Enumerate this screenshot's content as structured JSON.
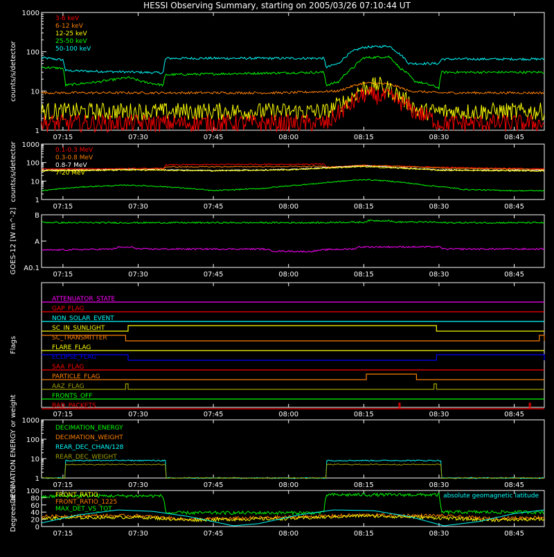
{
  "title": "HESSI Observing Summary, starting on 2005/03/26 07:10:44 UT",
  "colors": {
    "background": "#000000",
    "axes": "#ffffff",
    "red": "#ff0000",
    "orange": "#ff8000",
    "yellow": "#ffff00",
    "green": "#00ff00",
    "cyan": "#00ffff",
    "magenta": "#ff00ff",
    "blue": "#0000ff",
    "olive": "#a0a000"
  },
  "chart_data": [
    {
      "id": "p1",
      "type": "line",
      "title": "HESSI Observing Summary, starting on 2005/03/26 07:10:44 UT",
      "ylabel": "counts/s/detector",
      "yscale": "log",
      "ylim": [
        1,
        1000
      ],
      "xlim": [
        "07:10:44",
        "08:51:00"
      ],
      "ytick_labels": [
        "1",
        "10",
        "100",
        "1000"
      ],
      "xtick_labels": [
        "07:15",
        "07:30",
        "07:45",
        "08:00",
        "08:15",
        "08:30",
        "08:45"
      ],
      "legend": [
        {
          "label": "3-6 keV",
          "color": "#ff0000"
        },
        {
          "label": "6-12 keV",
          "color": "#ff8000"
        },
        {
          "label": "12-25 keV",
          "color": "#ffff00"
        },
        {
          "label": "25-50 keV",
          "color": "#00ff00"
        },
        {
          "label": "50-100 keV",
          "color": "#00ffff"
        }
      ],
      "series": [
        {
          "name": "50-100 keV",
          "color": "#00ffff",
          "x": [
            "07:10:44",
            "07:15:00",
            "07:15:30",
            "07:35:00",
            "07:35:30",
            "08:07:00",
            "08:07:30",
            "08:10:00",
            "08:13:00",
            "08:15:00",
            "08:18:00",
            "08:20:00",
            "08:22:00",
            "08:24:00",
            "08:30:00",
            "08:30:30",
            "08:51:00"
          ],
          "y": [
            70,
            62,
            33,
            29,
            68,
            68,
            40,
            50,
            105,
            130,
            135,
            140,
            90,
            50,
            50,
            65,
            65
          ]
        },
        {
          "name": "25-50 keV",
          "color": "#00ff00",
          "x": [
            "07:10:44",
            "07:15:00",
            "07:15:30",
            "07:22:00",
            "07:28:00",
            "07:31:00",
            "07:35:00",
            "07:35:30",
            "08:07:00",
            "08:07:30",
            "08:10:00",
            "08:13:00",
            "08:15:00",
            "08:20:00",
            "08:22:00",
            "08:25:00",
            "08:30:00",
            "08:30:30",
            "08:51:00"
          ],
          "y": [
            40,
            38,
            14,
            17,
            22,
            17,
            14,
            26,
            30,
            14,
            17,
            40,
            70,
            75,
            40,
            18,
            12,
            30,
            30
          ]
        },
        {
          "name": "6-12 keV",
          "color": "#ff8000",
          "x": [
            "07:10:44",
            "07:30:00",
            "07:45:00",
            "08:00:00",
            "08:10:00",
            "08:15:00",
            "08:20:00",
            "08:24:00",
            "08:30:00",
            "08:51:00"
          ],
          "y": [
            9,
            9,
            9,
            9,
            10,
            16,
            15,
            10,
            9,
            9
          ]
        },
        {
          "name": "12-25 keV",
          "color": "#ffff00",
          "x": [
            "07:10:44",
            "07:30:00",
            "07:45:00",
            "08:00:00",
            "08:08:00",
            "08:12:00",
            "08:15:00",
            "08:18:00",
            "08:20:00",
            "08:23:00",
            "08:26:00",
            "08:30:00",
            "08:51:00"
          ],
          "y": [
            3,
            3,
            3,
            3,
            3,
            6,
            12,
            14,
            11,
            6,
            3,
            3,
            3
          ]
        },
        {
          "name": "3-6 keV",
          "color": "#ff0000",
          "x": [
            "07:10:44",
            "07:30:00",
            "07:45:00",
            "08:00:00",
            "08:08:00",
            "08:12:00",
            "08:15:00",
            "08:20:00",
            "08:25:00",
            "08:30:00",
            "08:51:00"
          ],
          "y": [
            1.5,
            1.5,
            1.5,
            1.5,
            1.5,
            4,
            8,
            7,
            3,
            1.5,
            1.5
          ]
        }
      ]
    },
    {
      "id": "p2",
      "type": "line",
      "ylabel": "counts/s/detector",
      "yscale": "log",
      "ylim": [
        1,
        1000
      ],
      "xlim": [
        "07:10:44",
        "08:51:00"
      ],
      "ytick_labels": [
        "1",
        "10",
        "100",
        "1000"
      ],
      "xtick_labels": [
        "07:15",
        "07:30",
        "07:45",
        "08:00",
        "08:15",
        "08:30",
        "08:45"
      ],
      "legend": [
        {
          "label": "0.1-0.3 MeV",
          "color": "#ff0000"
        },
        {
          "label": "0.3-0.8 MeV",
          "color": "#ff8000"
        },
        {
          "label": "0.8-7 MeV",
          "color": "#ffffff"
        },
        {
          "label": "7-20 MeV",
          "color": "#ffff00"
        }
      ],
      "series": [
        {
          "name": "0.1-0.3 MeV",
          "color": "#ff0000",
          "x": [
            "07:10:44",
            "07:35:00",
            "07:35:30",
            "07:50:00",
            "08:07:00",
            "08:07:30",
            "08:15:00",
            "08:30:00",
            "08:30:30",
            "08:51:00"
          ],
          "y": [
            45,
            48,
            75,
            80,
            82,
            55,
            70,
            55,
            55,
            45
          ]
        },
        {
          "name": "0.3-0.8 MeV",
          "color": "#ff8000",
          "x": [
            "07:10:44",
            "07:30:00",
            "07:35:00",
            "07:35:30",
            "07:50:00",
            "08:07:00",
            "08:07:30",
            "08:15:00",
            "08:30:00",
            "08:30:30",
            "08:51:00"
          ],
          "y": [
            40,
            44,
            45,
            58,
            60,
            62,
            55,
            70,
            52,
            50,
            42
          ]
        },
        {
          "name": "0.8-7 MeV",
          "color": "#ffffff",
          "x": [
            "07:10:44",
            "07:30:00",
            "07:45:00",
            "08:00:00",
            "08:15:00",
            "08:30:00",
            "08:51:00"
          ],
          "y": [
            38,
            42,
            38,
            42,
            65,
            40,
            38
          ]
        },
        {
          "name": "7-20 MeV",
          "color": "#ffff00",
          "x": [
            "07:10:44",
            "07:30:00",
            "07:45:00",
            "08:00:00",
            "08:15:00",
            "08:30:00",
            "08:51:00"
          ],
          "y": [
            35,
            40,
            36,
            40,
            60,
            38,
            35
          ]
        },
        {
          "name": "",
          "color": "#00ff00",
          "x": [
            "07:10:44",
            "07:20:00",
            "07:28:00",
            "07:35:00",
            "07:45:00",
            "07:55:00",
            "08:05:00",
            "08:15:00",
            "08:20:00",
            "08:27:00",
            "08:35:00",
            "08:45:00",
            "08:51:00"
          ],
          "y": [
            3,
            5,
            6,
            5,
            3,
            4,
            7,
            12,
            10,
            6,
            3.5,
            3,
            3
          ]
        }
      ]
    },
    {
      "id": "p3",
      "type": "line",
      "ylabel": "GOES-12 [W m^-2]",
      "yscale": "log",
      "ylim": [
        1e-08,
        1e-06
      ],
      "xlim": [
        "07:10:44",
        "08:51:00"
      ],
      "ytick_labels": [
        "B",
        "A",
        "A0.1"
      ],
      "xtick_labels": [
        "07:15",
        "07:30",
        "07:45",
        "08:00",
        "08:15",
        "08:30",
        "08:45"
      ],
      "series": [
        {
          "name": "",
          "color": "#00ff00",
          "x": [
            "07:10:44",
            "07:15:00",
            "07:45:00",
            "08:08:00",
            "08:08:30",
            "08:15:00",
            "08:16:00",
            "08:20:00",
            "08:21:00",
            "08:29:00",
            "08:30:00",
            "08:51:00"
          ],
          "y": [
            5.2e-07,
            5e-07,
            5e-07,
            5e-07,
            5.2e-07,
            5.2e-07,
            6e-07,
            6e-07,
            5.3e-07,
            5.3e-07,
            5e-07,
            5e-07
          ]
        },
        {
          "name": "",
          "color": "#ff00ff",
          "x": [
            "07:10:44",
            "07:25:00",
            "07:26:00",
            "07:29:00",
            "07:30:00",
            "07:55:00",
            "07:57:00",
            "08:04:00",
            "08:08:00",
            "08:13:00",
            "08:14:00",
            "08:20:00",
            "08:30:00",
            "08:31:00",
            "08:51:00"
          ],
          "y": [
            4.5e-08,
            5e-08,
            5.8e-08,
            5.8e-08,
            5e-08,
            5e-08,
            4.2e-08,
            4e-08,
            4.8e-08,
            5e-08,
            6e-08,
            6e-08,
            6e-08,
            5e-08,
            5e-08
          ]
        }
      ]
    },
    {
      "id": "p4",
      "type": "line",
      "ylabel": "Flags",
      "xlim": [
        "07:10:44",
        "08:51:00"
      ],
      "xtick_labels": [
        "07:15",
        "07:30",
        "07:45",
        "08:00",
        "08:15",
        "08:30",
        "08:45"
      ],
      "series": [
        {
          "name": "ATTENUATOR_STATE",
          "color": "#ff00ff",
          "on": []
        },
        {
          "name": "GAP_FLAG",
          "color": "#ff0000",
          "on": []
        },
        {
          "name": "NON_SOLAR_EVENT",
          "color": "#00ffff",
          "on": []
        },
        {
          "name": "SC_IN_SUNLIGHT",
          "color": "#ffff00",
          "on": [
            [
              "07:28:00",
              "08:29:30"
            ]
          ]
        },
        {
          "name": "SC_TRANSMITTER",
          "color": "#ff8000",
          "on": [
            [
              "07:10:44",
              "07:27:30"
            ],
            [
              "08:50:00",
              "08:51:00"
            ]
          ]
        },
        {
          "name": "FLARE_FLAG",
          "color": "#ffff00",
          "on": []
        },
        {
          "name": "ECLIPSE_FLAG",
          "color": "#0000ff",
          "on": [
            [
              "07:10:44",
              "07:28:00"
            ],
            [
              "08:29:30",
              "08:51:00"
            ]
          ]
        },
        {
          "name": "SAA_FLAG",
          "color": "#ff0000",
          "on": []
        },
        {
          "name": "PARTICLE_FLAG",
          "color": "#ff8000",
          "on": [
            [
              "08:15:30",
              "08:25:30"
            ]
          ]
        },
        {
          "name": "AAZ_FLAG",
          "color": "#a0a000",
          "on": [
            [
              "07:27:30",
              "07:28:00"
            ],
            [
              "08:29:00",
              "08:29:30"
            ]
          ]
        },
        {
          "name": "FRONTS_OFF",
          "color": "#00ff00",
          "on": []
        },
        {
          "name": "BAD_PACKETS",
          "color": "#ff0000",
          "on": [
            [
              "08:22:00",
              "08:22:15"
            ],
            [
              "08:48:00",
              "08:48:15"
            ]
          ]
        }
      ]
    },
    {
      "id": "p5",
      "type": "line",
      "ylabel": "DECIMATION ENERGY or weight",
      "yscale": "log",
      "ylim": [
        1,
        1000
      ],
      "xlim": [
        "07:10:44",
        "08:51:00"
      ],
      "ytick_labels": [
        "1",
        "10",
        "100",
        "1000"
      ],
      "xtick_labels": [
        "07:15",
        "07:30",
        "07:45",
        "08:00",
        "08:15",
        "08:30",
        "08:45"
      ],
      "legend": [
        {
          "label": "DECIMATION_ENERGY",
          "color": "#00ff00"
        },
        {
          "label": "DECIMATION_WEIGHT",
          "color": "#ff8000"
        },
        {
          "label": "REAR_DEC_CHAN/128",
          "color": "#00ffff"
        },
        {
          "label": "REAR_DEC_WEIGHT",
          "color": "#a0a000"
        }
      ],
      "series": [
        {
          "name": "REAR_DEC_CHAN/128",
          "color": "#00ffff",
          "x": [
            "07:10:44",
            "07:15:30",
            "07:15:30",
            "07:35:30",
            "07:35:30",
            "08:07:30",
            "08:07:30",
            "08:30:30",
            "08:30:30",
            "08:51:00"
          ],
          "y": [
            1,
            1,
            8,
            8,
            1,
            1,
            8,
            8,
            1,
            1
          ]
        },
        {
          "name": "REAR_DEC_WEIGHT",
          "color": "#a0a000",
          "x": [
            "07:10:44",
            "07:15:30",
            "07:15:30",
            "07:35:30",
            "07:35:30",
            "08:07:30",
            "08:07:30",
            "08:30:30",
            "08:30:30",
            "08:51:00"
          ],
          "y": [
            1,
            1,
            5,
            5,
            1,
            1,
            5,
            5,
            1,
            1
          ]
        }
      ]
    },
    {
      "id": "p6",
      "type": "line",
      "ylabel": "Degrees or %",
      "ylim": [
        0,
        100
      ],
      "xlim": [
        "07:10:44",
        "08:51:00"
      ],
      "ytick_labels": [
        "0",
        "20",
        "40",
        "60",
        "80",
        "100"
      ],
      "xtick_labels": [
        "07:15",
        "07:30",
        "07:45",
        "08:00",
        "08:15",
        "08:30",
        "08:45"
      ],
      "legend": [
        {
          "label": "FRONT_RATIO",
          "color": "#ffff00"
        },
        {
          "label": "FRONT_RATIO_1225",
          "color": "#ff8000"
        },
        {
          "label": "MAX_DET_VS_TOT",
          "color": "#00ff00"
        },
        {
          "label": "absolute geomagnetic latitude",
          "color": "#00ffff"
        }
      ],
      "series": [
        {
          "name": "MAX_DET_VS_TOT",
          "color": "#00ff00",
          "x": [
            "07:10:44",
            "07:15:00",
            "07:35:00",
            "07:35:30",
            "08:07:00",
            "08:07:30",
            "08:15:00",
            "08:30:00",
            "08:30:30",
            "08:51:00"
          ],
          "y": [
            82,
            85,
            85,
            38,
            38,
            88,
            88,
            88,
            40,
            40
          ]
        },
        {
          "name": "FRONT_RATIO_1225",
          "color": "#ff8000",
          "x": [
            "07:10:44",
            "07:20:00",
            "07:30:00",
            "07:40:00",
            "08:00:00",
            "08:15:00",
            "08:30:00",
            "08:40:00",
            "08:51:00"
          ],
          "y": [
            28,
            30,
            30,
            20,
            26,
            32,
            30,
            22,
            26
          ]
        },
        {
          "name": "FRONT_RATIO",
          "color": "#ffff00",
          "x": [
            "07:10:44",
            "07:20:00",
            "07:30:00",
            "07:40:00",
            "08:00:00",
            "08:15:00",
            "08:30:00",
            "08:40:00",
            "08:51:00"
          ],
          "y": [
            22,
            25,
            26,
            18,
            22,
            30,
            24,
            18,
            20
          ]
        },
        {
          "name": "absolute geomagnetic latitude",
          "color": "#00ffff",
          "x": [
            "07:10:44",
            "07:18:00",
            "07:26:00",
            "07:33:00",
            "07:40:00",
            "07:49:00",
            "07:54:00",
            "08:02:00",
            "08:09:00",
            "08:17:00",
            "08:24:00",
            "08:31:00",
            "08:38:00",
            "08:45:00",
            "08:51:00"
          ],
          "y": [
            10,
            32,
            46,
            42,
            28,
            2,
            8,
            32,
            46,
            44,
            28,
            2,
            14,
            36,
            46
          ]
        }
      ]
    }
  ]
}
